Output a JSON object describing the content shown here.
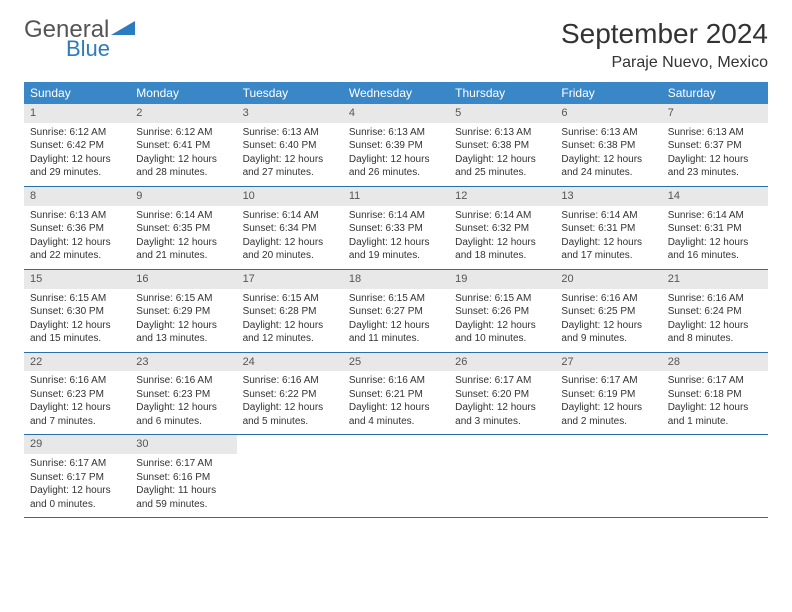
{
  "logo": {
    "text1": "General",
    "text2": "Blue",
    "color_general": "#555555",
    "color_blue": "#2b7bbf",
    "shape_color": "#2b7bbf"
  },
  "title": "September 2024",
  "location": "Paraje Nuevo, Mexico",
  "header_bg": "#3a87c8",
  "daynum_bg": "#e8e8e8",
  "week_border": "#2b6fa8",
  "day_labels": [
    "Sunday",
    "Monday",
    "Tuesday",
    "Wednesday",
    "Thursday",
    "Friday",
    "Saturday"
  ],
  "fonts": {
    "title_size": 28,
    "location_size": 16,
    "header_size": 12,
    "daynum_size": 11,
    "body_size": 10
  },
  "grid": {
    "cols": 7,
    "rows": 5
  },
  "days": [
    {
      "n": "1",
      "sr": "6:12 AM",
      "ss": "6:42 PM",
      "dl": "12 hours and 29 minutes."
    },
    {
      "n": "2",
      "sr": "6:12 AM",
      "ss": "6:41 PM",
      "dl": "12 hours and 28 minutes."
    },
    {
      "n": "3",
      "sr": "6:13 AM",
      "ss": "6:40 PM",
      "dl": "12 hours and 27 minutes."
    },
    {
      "n": "4",
      "sr": "6:13 AM",
      "ss": "6:39 PM",
      "dl": "12 hours and 26 minutes."
    },
    {
      "n": "5",
      "sr": "6:13 AM",
      "ss": "6:38 PM",
      "dl": "12 hours and 25 minutes."
    },
    {
      "n": "6",
      "sr": "6:13 AM",
      "ss": "6:38 PM",
      "dl": "12 hours and 24 minutes."
    },
    {
      "n": "7",
      "sr": "6:13 AM",
      "ss": "6:37 PM",
      "dl": "12 hours and 23 minutes."
    },
    {
      "n": "8",
      "sr": "6:13 AM",
      "ss": "6:36 PM",
      "dl": "12 hours and 22 minutes."
    },
    {
      "n": "9",
      "sr": "6:14 AM",
      "ss": "6:35 PM",
      "dl": "12 hours and 21 minutes."
    },
    {
      "n": "10",
      "sr": "6:14 AM",
      "ss": "6:34 PM",
      "dl": "12 hours and 20 minutes."
    },
    {
      "n": "11",
      "sr": "6:14 AM",
      "ss": "6:33 PM",
      "dl": "12 hours and 19 minutes."
    },
    {
      "n": "12",
      "sr": "6:14 AM",
      "ss": "6:32 PM",
      "dl": "12 hours and 18 minutes."
    },
    {
      "n": "13",
      "sr": "6:14 AM",
      "ss": "6:31 PM",
      "dl": "12 hours and 17 minutes."
    },
    {
      "n": "14",
      "sr": "6:14 AM",
      "ss": "6:31 PM",
      "dl": "12 hours and 16 minutes."
    },
    {
      "n": "15",
      "sr": "6:15 AM",
      "ss": "6:30 PM",
      "dl": "12 hours and 15 minutes."
    },
    {
      "n": "16",
      "sr": "6:15 AM",
      "ss": "6:29 PM",
      "dl": "12 hours and 13 minutes."
    },
    {
      "n": "17",
      "sr": "6:15 AM",
      "ss": "6:28 PM",
      "dl": "12 hours and 12 minutes."
    },
    {
      "n": "18",
      "sr": "6:15 AM",
      "ss": "6:27 PM",
      "dl": "12 hours and 11 minutes."
    },
    {
      "n": "19",
      "sr": "6:15 AM",
      "ss": "6:26 PM",
      "dl": "12 hours and 10 minutes."
    },
    {
      "n": "20",
      "sr": "6:16 AM",
      "ss": "6:25 PM",
      "dl": "12 hours and 9 minutes."
    },
    {
      "n": "21",
      "sr": "6:16 AM",
      "ss": "6:24 PM",
      "dl": "12 hours and 8 minutes."
    },
    {
      "n": "22",
      "sr": "6:16 AM",
      "ss": "6:23 PM",
      "dl": "12 hours and 7 minutes."
    },
    {
      "n": "23",
      "sr": "6:16 AM",
      "ss": "6:23 PM",
      "dl": "12 hours and 6 minutes."
    },
    {
      "n": "24",
      "sr": "6:16 AM",
      "ss": "6:22 PM",
      "dl": "12 hours and 5 minutes."
    },
    {
      "n": "25",
      "sr": "6:16 AM",
      "ss": "6:21 PM",
      "dl": "12 hours and 4 minutes."
    },
    {
      "n": "26",
      "sr": "6:17 AM",
      "ss": "6:20 PM",
      "dl": "12 hours and 3 minutes."
    },
    {
      "n": "27",
      "sr": "6:17 AM",
      "ss": "6:19 PM",
      "dl": "12 hours and 2 minutes."
    },
    {
      "n": "28",
      "sr": "6:17 AM",
      "ss": "6:18 PM",
      "dl": "12 hours and 1 minute."
    },
    {
      "n": "29",
      "sr": "6:17 AM",
      "ss": "6:17 PM",
      "dl": "12 hours and 0 minutes."
    },
    {
      "n": "30",
      "sr": "6:17 AM",
      "ss": "6:16 PM",
      "dl": "11 hours and 59 minutes."
    }
  ],
  "labels": {
    "sunrise": "Sunrise:",
    "sunset": "Sunset:",
    "daylight": "Daylight:"
  }
}
